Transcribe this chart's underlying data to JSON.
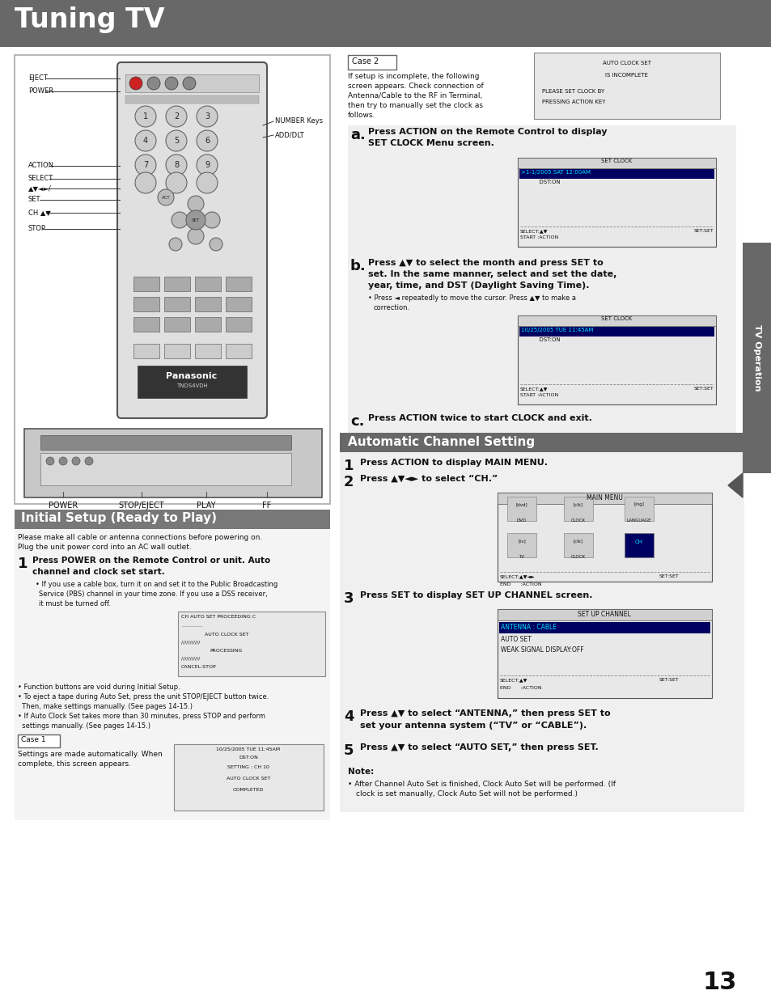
{
  "title": "Tuning TV",
  "title_bg": "#686868",
  "title_color": "#ffffff",
  "page_bg": "#ffffff",
  "section1_title": "Initial Setup (Ready to Play)",
  "section1_bg": "#787878",
  "section1_color": "#ffffff",
  "section2_title": "Automatic Channel Setting",
  "section2_bg": "#686868",
  "section2_color": "#ffffff",
  "sidebar_text": "TV Operation",
  "sidebar_bg": "#686868",
  "sidebar_color": "#ffffff",
  "page_number": "13",
  "left_box_outline": "#aaaaaa",
  "body_light_gray": "#eeeeee",
  "screen_bg": "#e8e8e8",
  "highlight_blue_bg": "#000060",
  "highlight_cyan": "#00e0ff"
}
